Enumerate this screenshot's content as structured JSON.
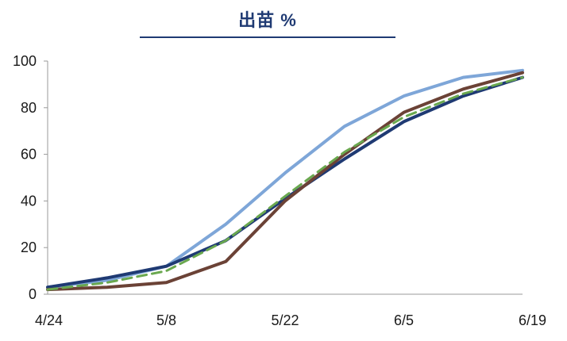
{
  "chart_data": {
    "type": "line",
    "title": "出苗 %",
    "xlabel": "",
    "ylabel": "",
    "x_tick_labels": [
      "4/24",
      "5/8",
      "5/22",
      "6/5",
      "6/19"
    ],
    "y_ticks": [
      0,
      20,
      40,
      60,
      80,
      100
    ],
    "ylim": [
      0,
      100
    ],
    "x": [
      "4/24",
      "5/1",
      "5/8",
      "5/15",
      "5/22",
      "5/29",
      "6/5",
      "6/12",
      "6/19"
    ],
    "grid": false,
    "legend": "none",
    "series": [
      {
        "color": "#7ea6d8",
        "dash": false,
        "values": [
          3,
          6,
          12,
          30,
          52,
          72,
          85,
          93,
          96
        ]
      },
      {
        "color": "#1f3a73",
        "dash": false,
        "values": [
          3,
          7,
          12,
          23,
          41,
          58,
          74,
          85,
          93
        ]
      },
      {
        "color": "#6b4236",
        "dash": false,
        "values": [
          2,
          3,
          5,
          14,
          40,
          60,
          78,
          88,
          95
        ]
      },
      {
        "color": "#6aa84f",
        "dash": true,
        "values": [
          2,
          5,
          10,
          23,
          42,
          61,
          76,
          86,
          93
        ]
      }
    ]
  }
}
